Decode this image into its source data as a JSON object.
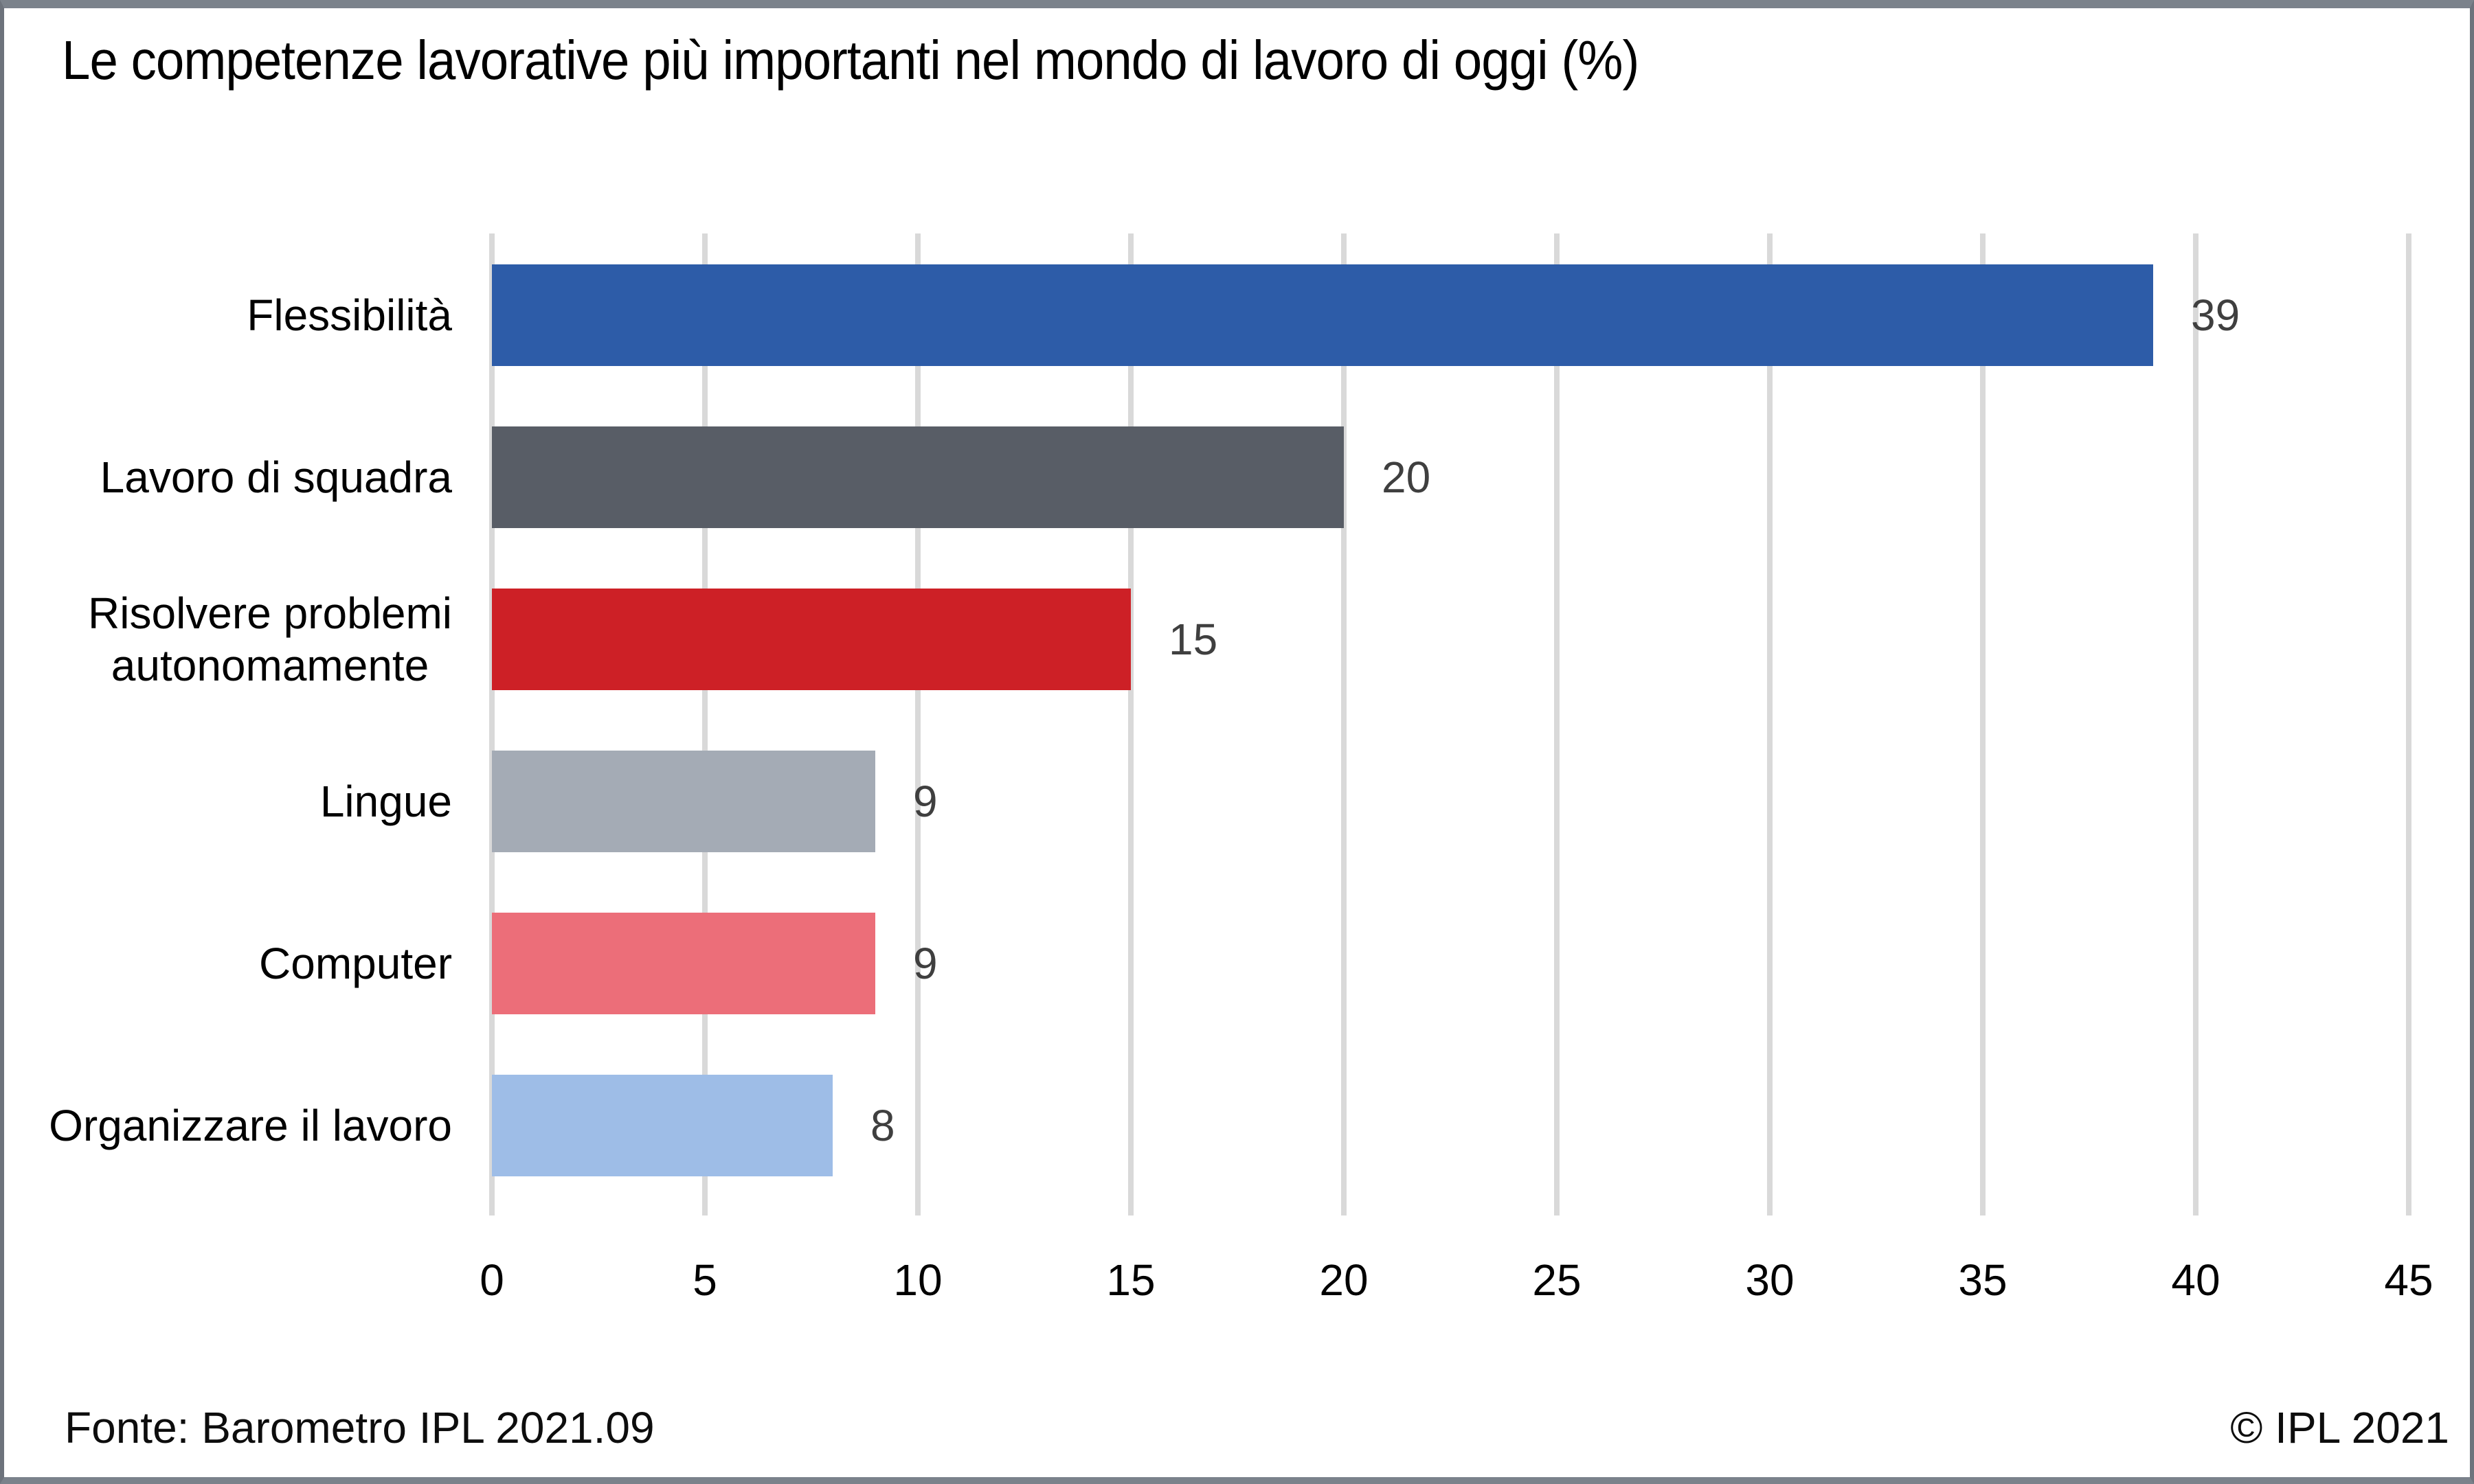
{
  "window": {
    "background": "#ffffff",
    "frame_border_color": "#7b828b"
  },
  "chart_data": {
    "type": "bar",
    "orientation": "horizontal",
    "title": "Le competenze lavorative più importanti nel mondo di lavoro di oggi (%)",
    "categories": [
      "Flessibilità",
      "Lavoro di squadra",
      "Risolvere problemi\nautonomamente",
      "Lingue",
      "Computer",
      "Organizzare il lavoro"
    ],
    "values": [
      39,
      20,
      15,
      9,
      9,
      8
    ],
    "value_labels": [
      "39",
      "20",
      "15",
      "9",
      "9",
      "8"
    ],
    "bar_colors": [
      "#2d5ca8",
      "#585d66",
      "#cd2026",
      "#a4abb5",
      "#ec6e79",
      "#9ebde7"
    ],
    "xlim": [
      0,
      45
    ],
    "xticks": [
      0,
      5,
      10,
      15,
      20,
      25,
      30,
      35,
      40,
      45
    ],
    "grid": true,
    "gridline_color": "#d9d9d9",
    "value_label_color": "#3f3f3f",
    "legend_position": "none"
  },
  "footer": {
    "source": "Fonte: Barometro IPL 2021.09",
    "copyright": "© IPL 2021"
  }
}
